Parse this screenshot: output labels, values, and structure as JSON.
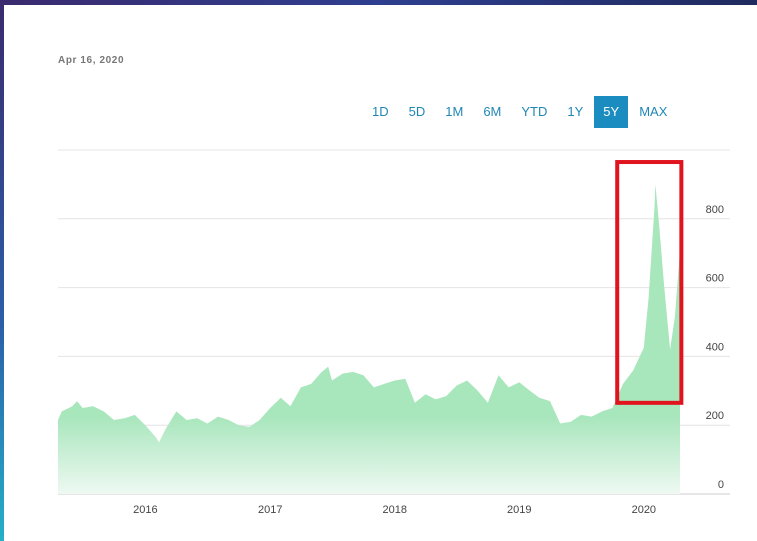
{
  "header": {
    "date": "Apr 16, 2020"
  },
  "range_tabs": [
    {
      "label": "1D",
      "active": false
    },
    {
      "label": "5D",
      "active": false
    },
    {
      "label": "1M",
      "active": false
    },
    {
      "label": "6M",
      "active": false
    },
    {
      "label": "YTD",
      "active": false
    },
    {
      "label": "1Y",
      "active": false
    },
    {
      "label": "5Y",
      "active": true
    },
    {
      "label": "MAX",
      "active": false
    }
  ],
  "colors": {
    "area_fill": "#a8e6bc",
    "highlight_box": "#e0141e",
    "active_tab": "#1a8cbf",
    "tab_text": "#1f87b5"
  },
  "chart_data": {
    "type": "area",
    "title": "",
    "xlabel": "",
    "ylabel": "",
    "ylim": [
      0,
      1000
    ],
    "xlim": [
      "2015-04-20",
      "2020-04-16"
    ],
    "x_ticks": [
      "2016",
      "2017",
      "2018",
      "2019",
      "2020"
    ],
    "y_ticks": [
      0,
      200,
      400,
      600,
      800
    ],
    "y_axis_position": "right",
    "grid": true,
    "highlight": {
      "x_start": "2019-10-15",
      "x_end": "2020-04-20",
      "y_start": 265,
      "y_end": 965,
      "color": "#e0141e"
    },
    "series": [
      {
        "x": [
          "2015-04-20",
          "2015-05-01",
          "2015-06-01",
          "2015-06-15",
          "2015-07-01",
          "2015-08-01",
          "2015-09-01",
          "2015-10-01",
          "2015-11-01",
          "2015-12-01",
          "2016-01-01",
          "2016-02-01",
          "2016-02-10",
          "2016-03-01",
          "2016-04-01",
          "2016-05-01",
          "2016-06-01",
          "2016-07-01",
          "2016-08-01",
          "2016-09-01",
          "2016-10-01",
          "2016-11-01",
          "2016-12-01",
          "2017-01-01",
          "2017-02-01",
          "2017-03-01",
          "2017-04-01",
          "2017-05-01",
          "2017-06-01",
          "2017-06-20",
          "2017-07-01",
          "2017-08-01",
          "2017-09-01",
          "2017-10-01",
          "2017-11-01",
          "2017-12-01",
          "2018-01-01",
          "2018-02-01",
          "2018-03-01",
          "2018-04-01",
          "2018-05-01",
          "2018-06-01",
          "2018-07-01",
          "2018-08-01",
          "2018-09-01",
          "2018-10-01",
          "2018-11-01",
          "2018-12-01",
          "2019-01-01",
          "2019-02-01",
          "2019-03-01",
          "2019-04-01",
          "2019-05-01",
          "2019-06-01",
          "2019-07-01",
          "2019-08-01",
          "2019-09-01",
          "2019-10-01",
          "2019-11-01",
          "2019-12-01",
          "2020-01-01",
          "2020-01-15",
          "2020-02-01",
          "2020-02-04",
          "2020-02-15",
          "2020-03-01",
          "2020-03-18",
          "2020-04-01",
          "2020-04-16"
        ],
        "values": [
          215,
          240,
          255,
          270,
          250,
          255,
          240,
          215,
          220,
          230,
          200,
          165,
          150,
          190,
          240,
          215,
          220,
          205,
          225,
          215,
          200,
          195,
          215,
          250,
          280,
          255,
          310,
          320,
          355,
          370,
          330,
          350,
          355,
          345,
          310,
          320,
          330,
          335,
          265,
          290,
          275,
          285,
          315,
          330,
          300,
          265,
          345,
          310,
          325,
          300,
          280,
          270,
          205,
          210,
          230,
          225,
          240,
          250,
          320,
          360,
          425,
          570,
          830,
          900,
          780,
          600,
          420,
          515,
          710
        ]
      }
    ]
  }
}
